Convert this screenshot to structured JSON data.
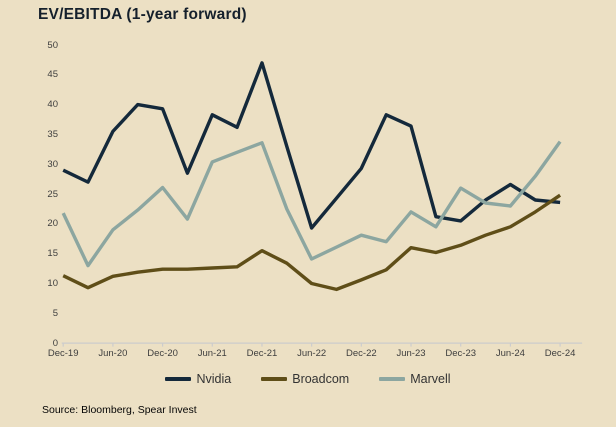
{
  "title": "EV/EBITDA (1-year forward)",
  "source": "Source: Bloomberg, Spear Invest",
  "colors": {
    "background": "#ece0c4",
    "nvidia": "#14293b",
    "broadcom": "#5f4e18",
    "marvell": "#8ca6a0",
    "axis_line": "#cccccc",
    "axis_text": "#3e3e3e"
  },
  "legend": [
    {
      "label": "Nvidia",
      "color": "#14293b"
    },
    {
      "label": "Broadcom",
      "color": "#5f4e18"
    },
    {
      "label": "Marvell",
      "color": "#8ca6a0"
    }
  ],
  "chart_data": {
    "type": "line",
    "title": "EV/EBITDA (1-year forward)",
    "xlabel": "",
    "ylabel": "",
    "ylim": [
      0,
      50
    ],
    "ytick_step": 5,
    "grid": false,
    "legend_position": "bottom",
    "x": [
      "Dec-19",
      "Mar-20",
      "Jun-20",
      "Sep-20",
      "Dec-20",
      "Mar-21",
      "Jun-21",
      "Sep-21",
      "Dec-21",
      "Mar-22",
      "Jun-22",
      "Sep-22",
      "Dec-22",
      "Mar-23",
      "Jun-23",
      "Sep-23",
      "Dec-23",
      "Mar-24",
      "Jun-24",
      "Sep-24",
      "Dec-24"
    ],
    "x_tick_labels": [
      "Dec-19",
      "Jun-20",
      "Dec-20",
      "Jun-21",
      "Dec-21",
      "Jun-22",
      "Dec-22",
      "Jun-23",
      "Dec-23",
      "Jun-24",
      "Dec-24"
    ],
    "series": [
      {
        "name": "Nvidia",
        "color": "#14293b",
        "values": [
          29.0,
          27.0,
          35.5,
          40.0,
          39.3,
          28.5,
          38.3,
          36.2,
          47.0,
          33.0,
          19.3,
          24.3,
          29.3,
          38.3,
          36.4,
          21.2,
          20.5,
          24.0,
          26.6,
          24.0,
          23.6
        ]
      },
      {
        "name": "Broadcom",
        "color": "#5f4e18",
        "values": [
          11.3,
          9.3,
          11.2,
          11.9,
          12.4,
          12.4,
          12.6,
          12.8,
          15.5,
          13.4,
          10.0,
          9.0,
          10.6,
          12.3,
          16.0,
          15.2,
          16.4,
          18.1,
          19.5,
          22.0,
          24.8
        ]
      },
      {
        "name": "Marvell",
        "color": "#8ca6a0",
        "values": [
          21.8,
          13.0,
          19.0,
          22.3,
          26.1,
          20.8,
          30.4,
          32.0,
          33.6,
          22.5,
          14.1,
          16.1,
          18.1,
          17.0,
          22.0,
          19.5,
          26.0,
          23.5,
          23.0,
          28.0,
          33.8
        ]
      }
    ]
  }
}
